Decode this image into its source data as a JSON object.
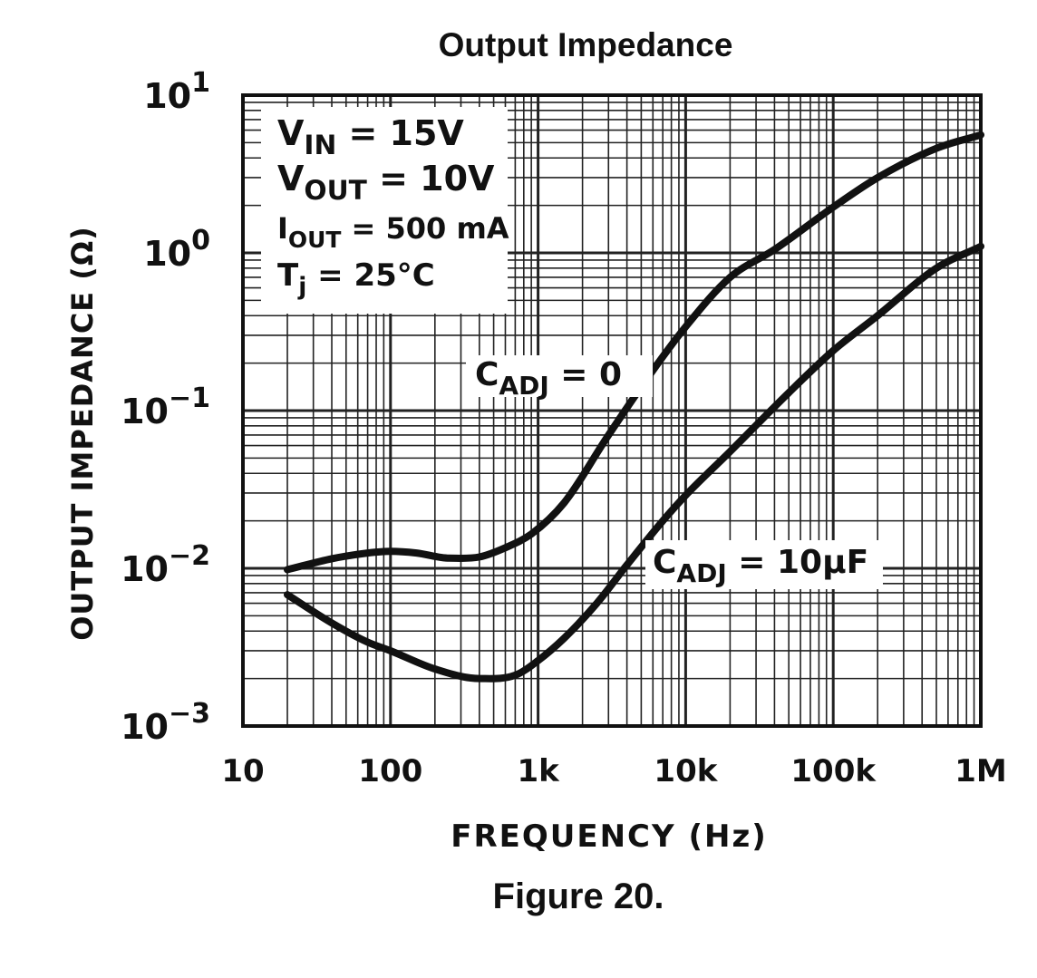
{
  "chart_data": {
    "type": "line",
    "title": "Output Impedance",
    "xlabel": "FREQUENCY (Hz)",
    "ylabel": "OUTPUT IMPEDANCE (Ω)",
    "caption": "Figure 20.",
    "x_scale": "log",
    "y_scale": "log",
    "xlim": [
      10,
      1000000
    ],
    "ylim": [
      0.001,
      10
    ],
    "grid": true,
    "x_ticks": [
      {
        "value": 10,
        "label": "10"
      },
      {
        "value": 100,
        "label": "100"
      },
      {
        "value": 1000,
        "label": "1k"
      },
      {
        "value": 10000,
        "label": "10k"
      },
      {
        "value": 100000,
        "label": "100k"
      },
      {
        "value": 1000000,
        "label": "1M"
      }
    ],
    "y_ticks": [
      {
        "value": 10,
        "base": "10",
        "exp": "1"
      },
      {
        "value": 1,
        "base": "10",
        "exp": "0"
      },
      {
        "value": 0.1,
        "base": "10",
        "exp": "−1"
      },
      {
        "value": 0.01,
        "base": "10",
        "exp": "−2"
      },
      {
        "value": 0.001,
        "base": "10",
        "exp": "−3"
      }
    ],
    "conditions": [
      {
        "main": "V",
        "sub": "IN",
        "rest": " = 15V"
      },
      {
        "main": "V",
        "sub": "OUT",
        "rest": " = 10V"
      },
      {
        "main": "I",
        "sub": "OUT",
        "rest": " = 500 mA"
      },
      {
        "main": "T",
        "sub": "j",
        "rest": " = 25°C"
      }
    ],
    "series": [
      {
        "label_main": "C",
        "label_sub": "ADJ",
        "label_rest": " = 0",
        "x": [
          20,
          40,
          70,
          100,
          150,
          250,
          400,
          600,
          900,
          1500,
          3000,
          6000,
          10000,
          20000,
          40000,
          100000,
          200000,
          500000,
          1000000
        ],
        "y": [
          0.0098,
          0.0115,
          0.0125,
          0.0128,
          0.0125,
          0.0116,
          0.0118,
          0.0135,
          0.0165,
          0.026,
          0.07,
          0.18,
          0.34,
          0.7,
          1.05,
          1.95,
          3.0,
          4.6,
          5.6
        ]
      },
      {
        "label_main": "C",
        "label_sub": "ADJ",
        "label_rest": " = 10μF",
        "x": [
          20,
          40,
          70,
          100,
          200,
          400,
          700,
          1000,
          1500,
          2500,
          4000,
          7000,
          10000,
          20000,
          50000,
          100000,
          200000,
          500000,
          1000000
        ],
        "y": [
          0.0068,
          0.0045,
          0.0034,
          0.003,
          0.0023,
          0.002,
          0.0021,
          0.0026,
          0.0036,
          0.006,
          0.0105,
          0.02,
          0.029,
          0.055,
          0.13,
          0.24,
          0.4,
          0.8,
          1.1
        ]
      }
    ]
  }
}
